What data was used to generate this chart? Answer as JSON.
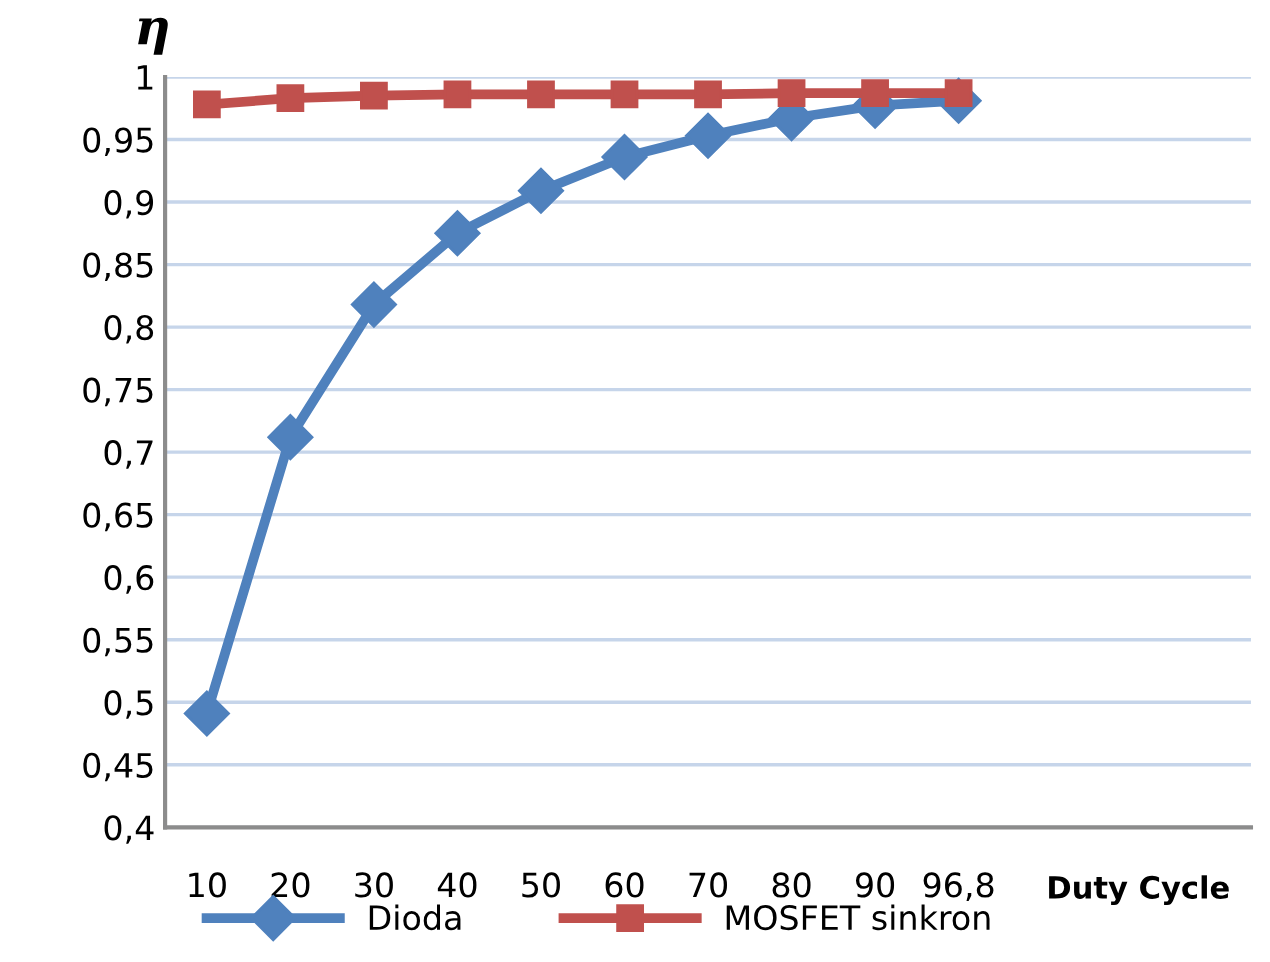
{
  "chart_data": {
    "type": "line",
    "ylabel": "η",
    "xlabel": "Duty Cycle",
    "categories": [
      "10",
      "20",
      "30",
      "40",
      "50",
      "60",
      "70",
      "80",
      "90",
      "96,8",
      null,
      null,
      null
    ],
    "series": [
      {
        "name": "Dioda",
        "color": "#4f81bd",
        "marker": "diamond",
        "values": [
          0.491,
          0.712,
          0.818,
          0.875,
          0.909,
          0.936,
          0.953,
          0.967,
          0.977,
          0.981,
          null,
          null,
          null
        ]
      },
      {
        "name": "MOSFET sinkron",
        "color": "#c0504d",
        "marker": "square",
        "values": [
          0.978,
          0.983,
          0.985,
          0.986,
          0.986,
          0.986,
          0.986,
          0.987,
          0.987,
          0.987,
          null,
          null,
          null
        ]
      }
    ],
    "ylim": [
      0.4,
      1
    ],
    "yticks": [
      {
        "value": 0.4,
        "label": "0,4"
      },
      {
        "value": 0.45,
        "label": "0,45"
      },
      {
        "value": 0.5,
        "label": "0,5"
      },
      {
        "value": 0.55,
        "label": "0,55"
      },
      {
        "value": 0.6,
        "label": "0,6"
      },
      {
        "value": 0.65,
        "label": "0,65"
      },
      {
        "value": 0.7,
        "label": "0,7"
      },
      {
        "value": 0.75,
        "label": "0,75"
      },
      {
        "value": 0.8,
        "label": "0,8"
      },
      {
        "value": 0.85,
        "label": "0,85"
      },
      {
        "value": 0.9,
        "label": "0,9"
      },
      {
        "value": 0.95,
        "label": "0,95"
      },
      {
        "value": 1,
        "label": "1"
      }
    ],
    "grid": "y",
    "legend": "bottom",
    "line_style": "solid"
  }
}
